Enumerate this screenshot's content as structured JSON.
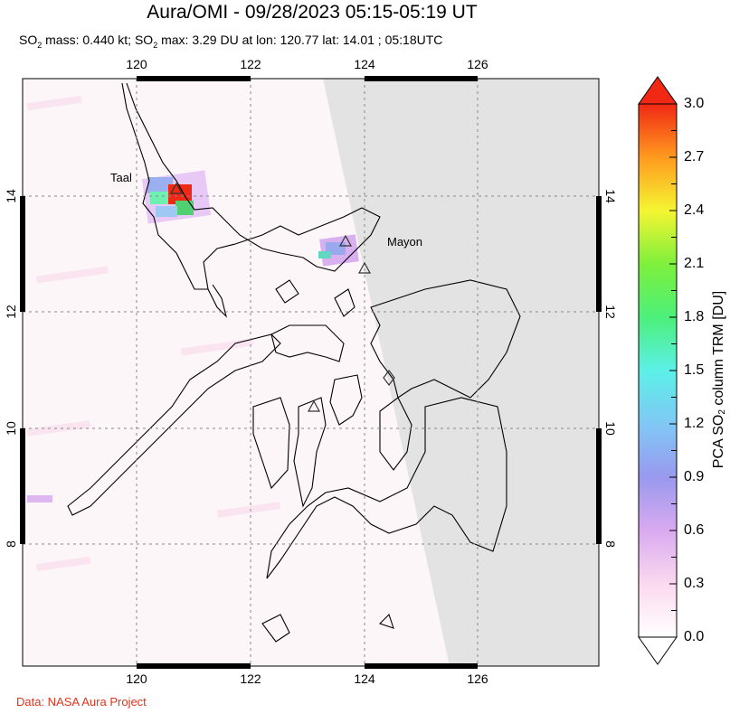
{
  "title": "Aura/OMI - 09/28/2023 05:15-05:19 UT",
  "subtitle": {
    "mass_prefix": "SO",
    "mass_sub": "2",
    "mass_text": " mass: 0.440 kt; ",
    "max_prefix": "SO",
    "max_sub": "2",
    "max_text": " max: 3.29 DU at lon: 120.77 lat: 14.01 ; 05:18UTC"
  },
  "map": {
    "lon_ticks": [
      "120",
      "122",
      "124",
      "126"
    ],
    "lat_ticks": [
      "14",
      "12",
      "10",
      "8"
    ],
    "volcanoes": [
      {
        "name": "Taal",
        "lon": 121.0,
        "lat": 14.0
      },
      {
        "name": "Mayon",
        "lon": 123.7,
        "lat": 13.26
      }
    ],
    "no_data_color": "#e3e3e3",
    "coast_color": "#000000",
    "grid_style": "dotted"
  },
  "colorbar": {
    "title_prefix": "PCA SO",
    "title_sub": "2",
    "title_suffix": " column TRM [DU]",
    "tick_labels": [
      "3.0",
      "2.7",
      "2.4",
      "2.1",
      "1.8",
      "1.5",
      "1.2",
      "0.9",
      "0.6",
      "0.3",
      "0.0"
    ],
    "range": [
      0.0,
      3.0
    ],
    "colors": [
      "#ffffff",
      "#fbd9ef",
      "#d9aaf0",
      "#9999ee",
      "#80c8f5",
      "#5cf0e8",
      "#4cf07a",
      "#7ef03c",
      "#f5f532",
      "#ff9a1e",
      "#f02814"
    ]
  },
  "credit": "Data: NASA Aura Project"
}
